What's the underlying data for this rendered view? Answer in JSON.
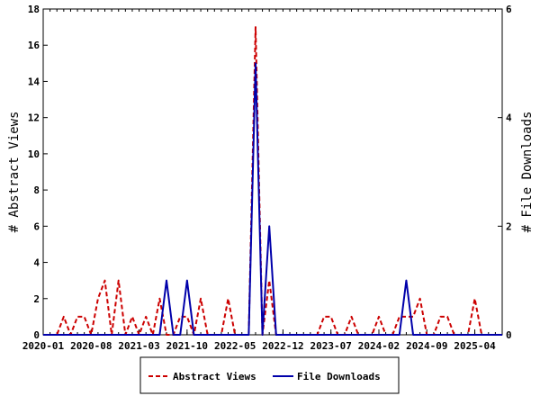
{
  "chart_data": {
    "type": "line",
    "x_tick_labels": [
      "2020-01",
      "2020-08",
      "2021-03",
      "2021-10",
      "2022-05",
      "2022-12",
      "2023-07",
      "2024-02",
      "2024-09",
      "2025-04"
    ],
    "x_start_month": "2020-01",
    "months_count": 68,
    "ylabel_left": "# Abstract Views",
    "ylabel_right": "# File Downloads",
    "ylim_left": [
      0,
      18
    ],
    "ylim_right": [
      0,
      6
    ],
    "left_ticks": [
      0,
      2,
      4,
      6,
      8,
      10,
      12,
      14,
      16,
      18
    ],
    "right_ticks": [
      0,
      2,
      4,
      6
    ],
    "legend_position": "bottom",
    "grid": false,
    "series": [
      {
        "name": "Abstract Views",
        "axis": "left",
        "color": "#cc0000",
        "style": "dashed",
        "values": [
          0,
          0,
          0,
          1,
          0,
          1,
          1,
          0,
          2,
          3,
          0,
          3,
          0,
          1,
          0,
          1,
          0,
          2,
          0,
          0,
          1,
          1,
          0,
          2,
          0,
          0,
          0,
          2,
          0,
          0,
          0,
          17,
          0,
          3,
          0,
          0,
          0,
          0,
          0,
          0,
          0,
          1,
          1,
          0,
          0,
          1,
          0,
          0,
          0,
          1,
          0,
          0,
          1,
          1,
          1,
          2,
          0,
          0,
          1,
          1,
          0,
          0,
          0,
          2,
          0,
          0,
          0,
          0
        ]
      },
      {
        "name": "File Downloads",
        "axis": "right",
        "color": "#0000aa",
        "style": "solid",
        "values": [
          0,
          0,
          0,
          0,
          0,
          0,
          0,
          0,
          0,
          0,
          0,
          0,
          0,
          0,
          0,
          0,
          0,
          0,
          1,
          0,
          0,
          1,
          0,
          0,
          0,
          0,
          0,
          0,
          0,
          0,
          0,
          5,
          0,
          2,
          0,
          0,
          0,
          0,
          0,
          0,
          0,
          0,
          0,
          0,
          0,
          0,
          0,
          0,
          0,
          0,
          0,
          0,
          0,
          1,
          0,
          0,
          0,
          0,
          0,
          0,
          0,
          0,
          0,
          0,
          0,
          0,
          0,
          0
        ]
      }
    ]
  },
  "legend": {
    "items": [
      {
        "label": "Abstract Views",
        "color": "#cc0000",
        "style": "dashed"
      },
      {
        "label": "File Downloads",
        "color": "#0000aa",
        "style": "solid"
      }
    ]
  }
}
